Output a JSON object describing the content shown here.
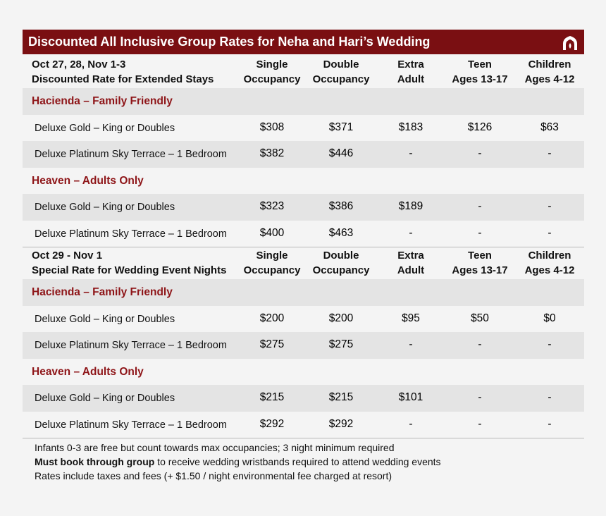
{
  "title": "Discounted All Inclusive Group Rates for Neha and Hari’s Wedding",
  "sections": [
    {
      "header": [
        "Oct 27, 28, Nov 1-3",
        "Discounted Rate for Extended Stays"
      ],
      "columns": [
        [
          "Single",
          "Occupancy"
        ],
        [
          "Double",
          "Occupancy"
        ],
        [
          "Extra",
          "Adult"
        ],
        [
          "Teen",
          "Ages 13-17"
        ],
        [
          "Children",
          "Ages 4-12"
        ]
      ],
      "groups": [
        {
          "name": "Hacienda – Family Friendly",
          "rows": [
            [
              "Deluxe Gold – King or Doubles",
              "$308",
              "$371",
              "$183",
              "$126",
              "$63"
            ],
            [
              "Deluxe Platinum Sky Terrace – 1 Bedroom",
              "$382",
              "$446",
              "-",
              "-",
              "-"
            ]
          ]
        },
        {
          "name": "Heaven – Adults Only",
          "rows": [
            [
              "Deluxe Gold – King or Doubles",
              "$323",
              "$386",
              "$189",
              "-",
              "-"
            ],
            [
              "Deluxe Platinum Sky Terrace – 1 Bedroom",
              "$400",
              "$463",
              "-",
              "-",
              "-"
            ]
          ]
        }
      ]
    },
    {
      "header": [
        "Oct 29 - Nov 1",
        "Special Rate for Wedding Event Nights"
      ],
      "columns": [
        [
          "Single",
          "Occupancy"
        ],
        [
          "Double",
          "Occupancy"
        ],
        [
          "Extra",
          "Adult"
        ],
        [
          "Teen",
          "Ages 13-17"
        ],
        [
          "Children",
          "Ages 4-12"
        ]
      ],
      "groups": [
        {
          "name": "Hacienda – Family Friendly",
          "rows": [
            [
              "Deluxe Gold – King or Doubles",
              "$200",
              "$200",
              "$95",
              "$50",
              "$0"
            ],
            [
              "Deluxe Platinum Sky Terrace – 1 Bedroom",
              "$275",
              "$275",
              "-",
              "-",
              "-"
            ]
          ]
        },
        {
          "name": "Heaven – Adults Only",
          "rows": [
            [
              "Deluxe Gold – King or Doubles",
              "$215",
              "$215",
              "$101",
              "-",
              "-"
            ],
            [
              "Deluxe Platinum Sky Terrace – 1 Bedroom",
              "$292",
              "$292",
              "-",
              "-",
              "-"
            ]
          ]
        }
      ]
    }
  ],
  "notes": [
    [
      {
        "text": "Infants 0-3 are free but count towards max occupancies; 3 night minimum required"
      }
    ],
    [
      {
        "text": "Must book through group",
        "bold": true
      },
      {
        "text": " to receive wedding wristbands required to attend wedding events"
      }
    ],
    [
      {
        "text": "Rates include taxes and fees (+ $1.50 / night environmental fee charged at resort)"
      }
    ]
  ]
}
